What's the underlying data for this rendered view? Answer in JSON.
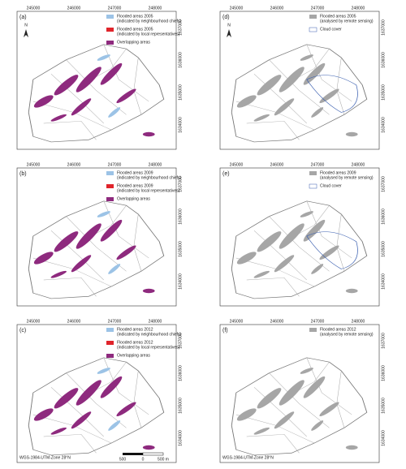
{
  "north": "N",
  "projection": "WGS-1984-UTM-Zone 28°N",
  "ticks": {
    "x": [
      "245000",
      "246000",
      "247000",
      "248000"
    ],
    "y": [
      "1637000",
      "1636000",
      "1635000",
      "1634000"
    ]
  },
  "scale": [
    "500",
    "0",
    "500 m"
  ],
  "panels": [
    {
      "label": "(a)",
      "legend": [
        {
          "lines": [
            "Flooded areas 2005",
            "(indicated by neighbourhood chiefs)"
          ],
          "color": "#9cc3e6"
        },
        {
          "lines": [
            "Flooded areas 2005",
            "(indicated by local representatives)"
          ],
          "color": "#e0242b"
        },
        {
          "lines": [
            "Overlapping areas"
          ],
          "color": "#8e2a7e"
        }
      ]
    },
    {
      "label": "(d)",
      "legend": [
        {
          "lines": [
            "Flooded areas 2005",
            "(analysed by remote sensing)"
          ],
          "color": "#a6a6a6"
        },
        {
          "lines": [
            "Cloud cover"
          ],
          "color": "#ffffff"
        }
      ]
    },
    {
      "label": "(b)",
      "legend": [
        {
          "lines": [
            "Flooded areas 2009",
            "(indicated by neighbourhood chiefs)"
          ],
          "color": "#9cc3e6"
        },
        {
          "lines": [
            "Flooded areas 2009",
            "(indicated by local representatives)"
          ],
          "color": "#e0242b"
        },
        {
          "lines": [
            "Overlapping areas"
          ],
          "color": "#8e2a7e"
        }
      ]
    },
    {
      "label": "(e)",
      "legend": [
        {
          "lines": [
            "Flooded areas 2009",
            "(analysed by remote sensing)"
          ],
          "color": "#a6a6a6"
        },
        {
          "lines": [
            "Cloud cover"
          ],
          "color": "#ffffff"
        }
      ]
    },
    {
      "label": "(c)",
      "legend": [
        {
          "lines": [
            "Flooded areas 2012",
            "(indicated by neighbourhood chiefs)"
          ],
          "color": "#9cc3e6"
        },
        {
          "lines": [
            "Flooded areas 2012",
            "(indicated by local representatives)"
          ],
          "color": "#e0242b"
        },
        {
          "lines": [
            "Overlapping areas"
          ],
          "color": "#8e2a7e"
        }
      ]
    },
    {
      "label": "(f)",
      "legend": [
        {
          "lines": [
            "Flooded areas 2012",
            "(analysed by remote sensing)"
          ],
          "color": "#a6a6a6"
        }
      ]
    }
  ]
}
